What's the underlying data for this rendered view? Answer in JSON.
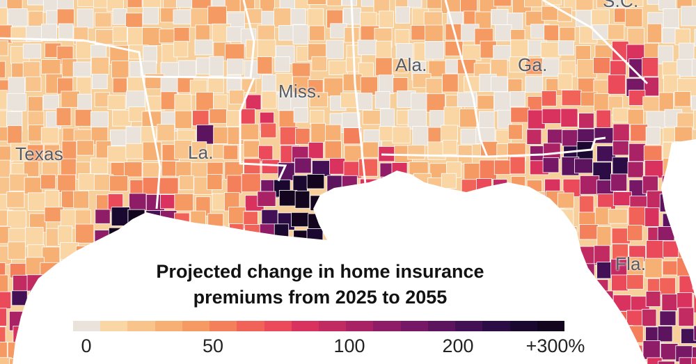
{
  "map": {
    "state_labels": [
      {
        "id": "tx",
        "text": "Texas"
      },
      {
        "id": "la",
        "text": "La."
      },
      {
        "id": "ms",
        "text": "Miss."
      },
      {
        "id": "al",
        "text": "Ala."
      },
      {
        "id": "ga",
        "text": "Ga."
      },
      {
        "id": "fl",
        "text": "Fla."
      },
      {
        "id": "sc",
        "text": "S.C."
      }
    ],
    "colors": {
      "water": "#ffffff",
      "land_low": "#f6cf9a",
      "county_border": "#ffffff",
      "state_border": "#ffffff"
    }
  },
  "legend": {
    "title_line1": "Projected change in home insurance",
    "title_line2": "premiums from 2025 to 2055",
    "swatches": [
      "#e9e3db",
      "#f9d6a3",
      "#f8c48c",
      "#f7b074",
      "#f69a64",
      "#f47f5b",
      "#f16358",
      "#ea4a5a",
      "#d9325e",
      "#c22a62",
      "#a92266",
      "#8f1c67",
      "#761865",
      "#5c145f",
      "#431056",
      "#2c0c44",
      "#1a0830",
      "#14051e"
    ],
    "ticks": [
      "0",
      "50",
      "100",
      "200",
      "+300%"
    ]
  }
}
